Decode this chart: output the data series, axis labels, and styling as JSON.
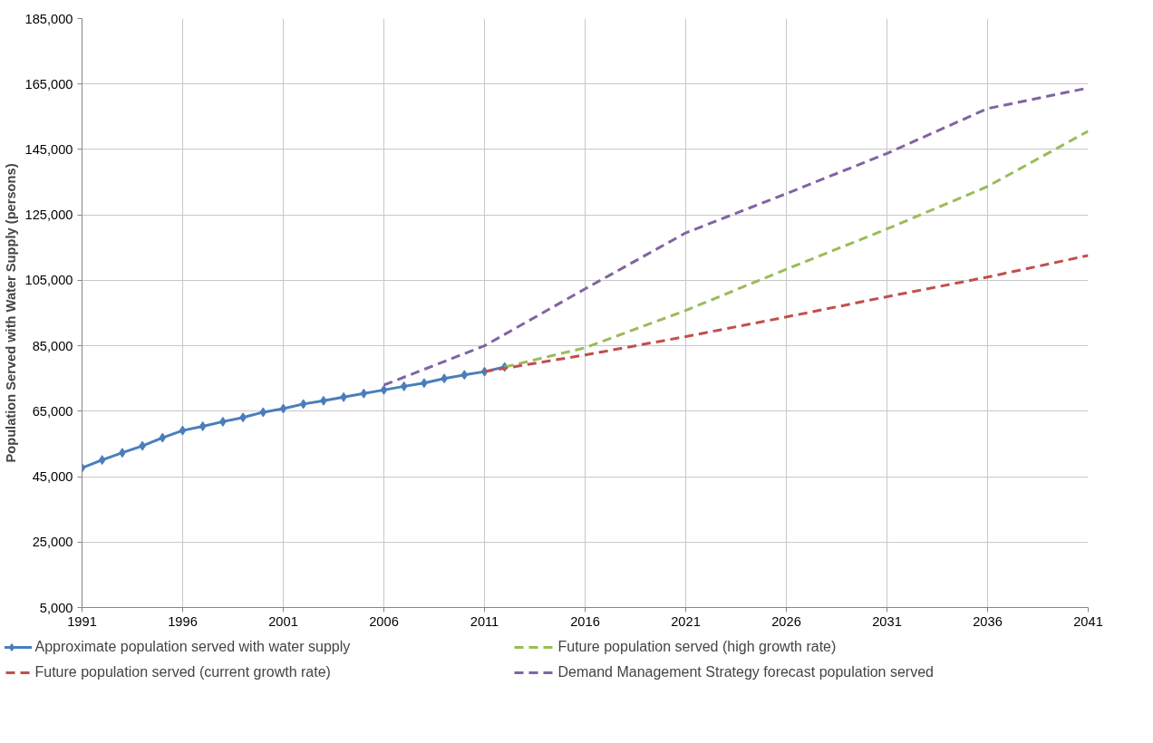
{
  "chart_data": {
    "type": "line",
    "ylabel": "Population Served with Water Supply (persons)",
    "xlim": [
      1991,
      2041
    ],
    "xticks": [
      1991,
      1996,
      2001,
      2006,
      2011,
      2016,
      2021,
      2026,
      2031,
      2036,
      2041
    ],
    "ylim": [
      5000,
      185000
    ],
    "yticks": [
      {
        "value": 5000,
        "label": "5,000"
      },
      {
        "value": 25000,
        "label": "25,000"
      },
      {
        "value": 45000,
        "label": "45,000"
      },
      {
        "value": 65000,
        "label": "65,000"
      },
      {
        "value": 85000,
        "label": "85,000"
      },
      {
        "value": 105000,
        "label": "105,000"
      },
      {
        "value": 125000,
        "label": "125,000"
      },
      {
        "value": 145000,
        "label": "145,000"
      },
      {
        "value": 165000,
        "label": "165,000"
      },
      {
        "value": 185000,
        "label": "185,000"
      }
    ],
    "grid": true,
    "legend": "bottom",
    "series": [
      {
        "name": "Approximate population served with water supply",
        "color": "#4a7ebb",
        "marker": "diamond",
        "line_style": "solid",
        "x": [
          1991,
          1992,
          1993,
          1994,
          1995,
          1996,
          1997,
          1998,
          1999,
          2000,
          2001,
          2002,
          2003,
          2004,
          2005,
          2006,
          2007,
          2008,
          2009,
          2010,
          2011,
          2012
        ],
        "values": [
          47700,
          50100,
          52300,
          54400,
          56900,
          59100,
          60400,
          61800,
          63100,
          64700,
          65800,
          67200,
          68200,
          69300,
          70400,
          71500,
          72600,
          73600,
          75000,
          76100,
          77100,
          78500
        ]
      },
      {
        "name": "Future population served (high growth rate)",
        "color": "#9bbb59",
        "marker": "none",
        "line_style": "dashed",
        "x": [
          2012,
          2016,
          2021,
          2026,
          2031,
          2036,
          2041
        ],
        "values": [
          78500,
          84400,
          95800,
          108400,
          120700,
          133700,
          150600
        ]
      },
      {
        "name": "Future population served (current growth rate)",
        "color": "#c0504d",
        "marker": "none",
        "line_style": "dashed",
        "x": [
          2011,
          2016,
          2021,
          2026,
          2031,
          2036,
          2041
        ],
        "values": [
          77100,
          82200,
          87800,
          93800,
          100000,
          106000,
          112600
        ]
      },
      {
        "name": "Demand Management Strategy forecast population served",
        "color": "#8064a2",
        "marker": "none",
        "line_style": "dashed",
        "x": [
          2006,
          2011,
          2016,
          2021,
          2026,
          2031,
          2036,
          2041
        ],
        "values": [
          73000,
          85000,
          102400,
          119500,
          131500,
          143800,
          157500,
          163800
        ]
      }
    ]
  }
}
